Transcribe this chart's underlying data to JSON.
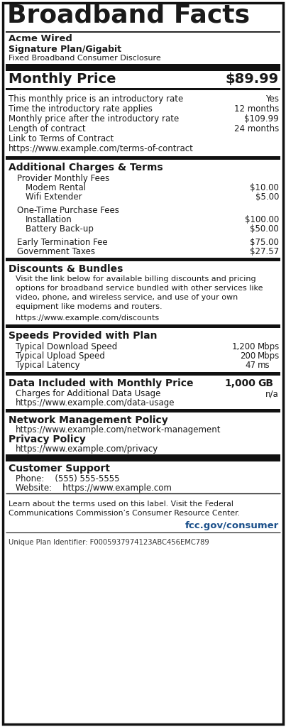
{
  "title": "Broadband Facts",
  "provider": "Acme Wired",
  "plan": "Signature Plan/Gigabit",
  "disclosure": "Fixed Broadband Consumer Disclosure",
  "monthly_price_label": "Monthly Price",
  "monthly_price_value": "$89.99",
  "rows": [
    {
      "label": "This monthly price is an introductory rate",
      "value": "Yes"
    },
    {
      "label": "Time the introductory rate applies",
      "value": "12 months"
    },
    {
      "label": "Monthly price after the introductory rate",
      "value": "$109.99"
    },
    {
      "label": "Length of contract",
      "value": "24 months"
    },
    {
      "label": "Link to Terms of Contract",
      "value": ""
    },
    {
      "label": "https://www.example.com/terms-of-contract",
      "value": ""
    }
  ],
  "section2_title": "Additional Charges & Terms",
  "section2_rows": [
    {
      "label": "Provider Monthly Fees",
      "value": "",
      "indent": 1
    },
    {
      "label": "Modem Rental",
      "value": "$10.00",
      "indent": 2
    },
    {
      "label": "Wifi Extender",
      "value": "$5.00",
      "indent": 2
    },
    {
      "label": "",
      "value": "",
      "indent": 0
    },
    {
      "label": "One-Time Purchase Fees",
      "value": "",
      "indent": 1
    },
    {
      "label": "Installation",
      "value": "$100.00",
      "indent": 2
    },
    {
      "label": "Battery Back-up",
      "value": "$50.00",
      "indent": 2
    },
    {
      "label": "",
      "value": "",
      "indent": 0
    },
    {
      "label": "Early Termination Fee",
      "value": "$75.00",
      "indent": 1
    },
    {
      "label": "Government Taxes",
      "value": "$27.57",
      "indent": 1
    }
  ],
  "section3_title": "Discounts & Bundles",
  "section3_body": "Visit the link below for available billing discounts and pricing\noptions for broadband service bundled with other services like\nvideo, phone, and wireless service, and use of your own\nequipment like modems and routers.",
  "section3_url": "https://www.example.com/discounts",
  "section4_title": "Speeds Provided with Plan",
  "section4_rows": [
    {
      "label": "Typical Download Speed",
      "value": "1,200",
      "unit": "Mbps"
    },
    {
      "label": "Typical Upload Speed",
      "value": "200",
      "unit": "Mbps"
    },
    {
      "label": "Typical Latency",
      "value": "47",
      "unit": "ms"
    }
  ],
  "section5_title": "Data Included with Monthly Price",
  "section5_value": "1,000",
  "section5_unit": "GB",
  "section5_rows": [
    {
      "label": "Charges for Additional Data Usage",
      "value": "n/a"
    },
    {
      "label": "https://www.example.com/data-usage",
      "value": ""
    }
  ],
  "section6_title": "Network Management Policy",
  "section6_url": "https://www.example.com/network-management",
  "section7_title": "Privacy Policy",
  "section7_url": "https://www.example.com/privacy",
  "section8_title": "Customer Support",
  "section8_phone": "Phone:    (555) 555-5555",
  "section8_website": "Website:    https://www.example.com",
  "footer_text": "Learn about the terms used on this label. Visit the Federal\nCommunications Commission’s Consumer Resource Center.",
  "footer_url": "fcc.gov/consumer",
  "unique_id": "Unique Plan Identifier: F0005937974123ABC456EMC789",
  "bg_color": "#ffffff",
  "text_color": "#1a1a1a",
  "border_color": "#111111",
  "thick_bar_color": "#111111",
  "fcc_color": "#1a4f8a"
}
